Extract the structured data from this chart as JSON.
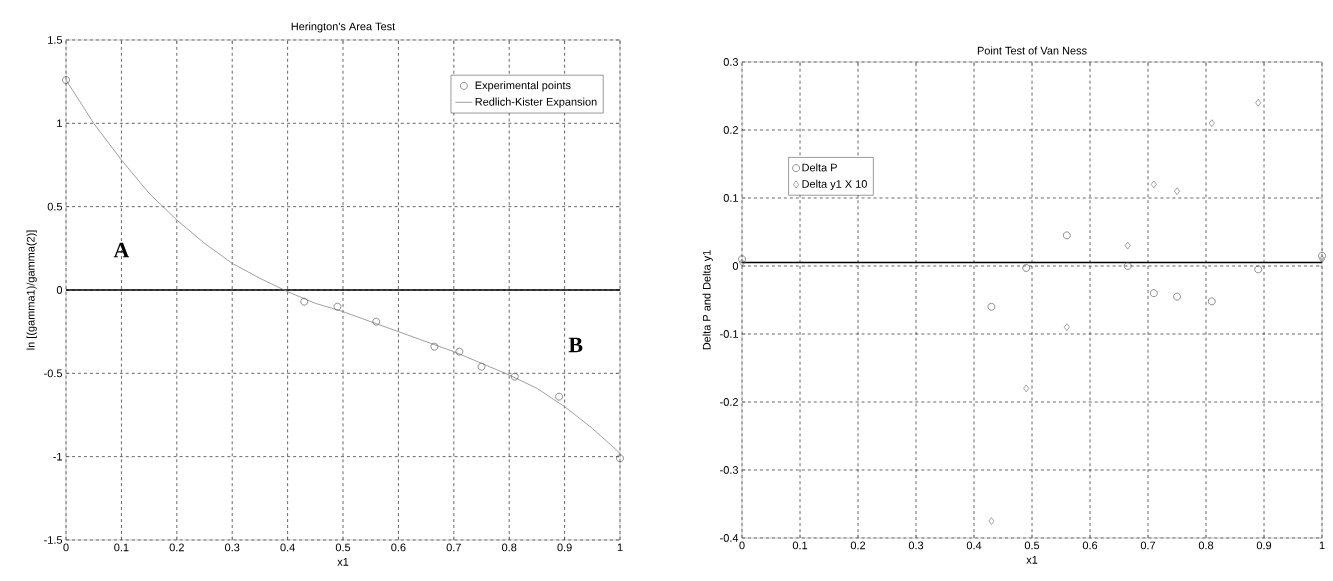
{
  "chart_data": [
    {
      "type": "scatter",
      "title": "Herington's Area Test",
      "xlabel": "x1",
      "ylabel": "ln [(gamma1)/gamma(2)]",
      "xlim": [
        0,
        1
      ],
      "ylim": [
        -1.5,
        1.5
      ],
      "xticks": [
        0,
        0.1,
        0.2,
        0.3,
        0.4,
        0.5,
        0.6,
        0.7,
        0.8,
        0.9,
        1
      ],
      "yticks": [
        -1.5,
        -1,
        -0.5,
        0,
        0.5,
        1,
        1.5
      ],
      "grid": true,
      "legend": "top right",
      "series": [
        {
          "name": "Experimental points",
          "marker": "circle",
          "color": "#444444",
          "x": [
            0,
            0.43,
            0.49,
            0.56,
            0.665,
            0.71,
            0.75,
            0.81,
            0.89,
            1.0
          ],
          "values": [
            1.26,
            -0.07,
            -0.1,
            -0.19,
            -0.34,
            -0.37,
            -0.46,
            -0.52,
            -0.64,
            -1.01
          ]
        },
        {
          "name": "Redlich-Kister Expansion",
          "type": "line",
          "line_style": "solid",
          "color": "#888888",
          "x": [
            0,
            0.05,
            0.1,
            0.15,
            0.2,
            0.25,
            0.3,
            0.35,
            0.4,
            0.45,
            0.5,
            0.55,
            0.6,
            0.65,
            0.7,
            0.75,
            0.8,
            0.85,
            0.9,
            0.95,
            1.0
          ],
          "values": [
            1.26,
            1.0,
            0.78,
            0.58,
            0.42,
            0.28,
            0.16,
            0.07,
            -0.01,
            -0.08,
            -0.13,
            -0.19,
            -0.25,
            -0.31,
            -0.37,
            -0.44,
            -0.51,
            -0.59,
            -0.7,
            -0.83,
            -0.98
          ]
        }
      ],
      "ref_lines": [
        {
          "axis": "y",
          "value": 0,
          "color": "#000000"
        }
      ],
      "annotations": [
        "A",
        "B"
      ]
    },
    {
      "type": "scatter",
      "title": "Point Test of Van Ness",
      "xlabel": "x1",
      "ylabel": "Delta P and Delta y1",
      "xlim": [
        0,
        1
      ],
      "ylim": [
        -0.4,
        0.3
      ],
      "xticks": [
        0,
        0.1,
        0.2,
        0.3,
        0.4,
        0.5,
        0.6,
        0.7,
        0.8,
        0.9,
        1
      ],
      "yticks": [
        -0.4,
        -0.3,
        -0.2,
        -0.1,
        0,
        0.1,
        0.2,
        0.3
      ],
      "grid": true,
      "legend": "top left",
      "series": [
        {
          "name": "Delta P",
          "marker": "circle",
          "color": "#444444",
          "x": [
            0,
            0.43,
            0.49,
            0.56,
            0.665,
            0.71,
            0.75,
            0.81,
            0.89,
            1.0
          ],
          "values": [
            0.01,
            -0.06,
            -0.003,
            0.045,
            0.0,
            -0.04,
            -0.045,
            -0.052,
            -0.005,
            0.015
          ]
        },
        {
          "name": "Delta y1 X 10",
          "marker": "diamond",
          "color": "#666666",
          "x": [
            0,
            0.43,
            0.49,
            0.56,
            0.665,
            0.71,
            0.75,
            0.81,
            0.89,
            1.0
          ],
          "values": [
            0.005,
            -0.375,
            -0.18,
            -0.09,
            0.03,
            0.12,
            0.11,
            0.21,
            0.24,
            0.01
          ]
        }
      ],
      "ref_lines": [
        {
          "axis": "y",
          "value": 0.005,
          "color": "#000000"
        }
      ]
    }
  ]
}
